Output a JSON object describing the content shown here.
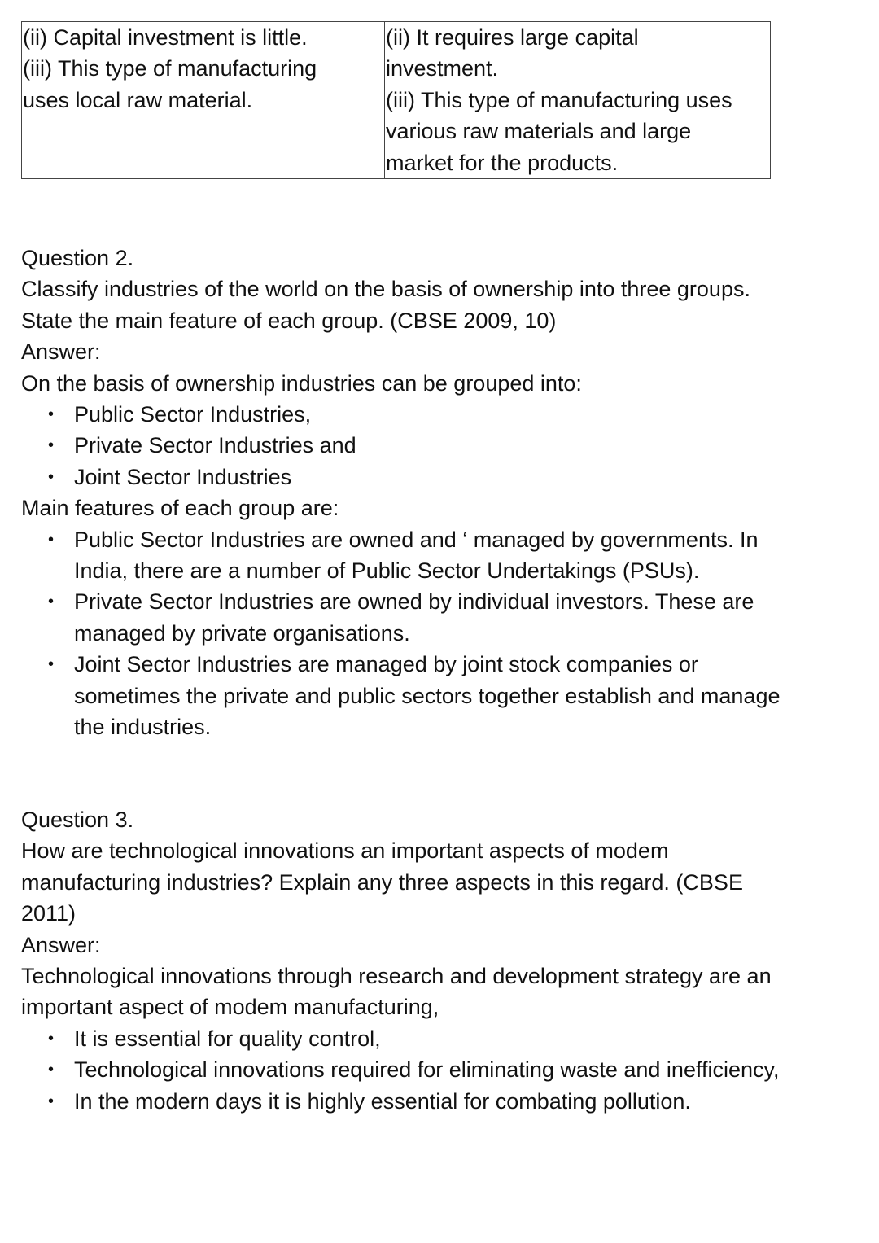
{
  "table": {
    "left_lines": [
      "(ii) Capital investment is little.",
      "(iii) This type of manufacturing",
      "uses local raw material."
    ],
    "right_lines": [
      "(ii) It requires large capital",
      "investment.",
      "(iii) This type of manufacturing uses",
      "various raw materials and large",
      "market for the products."
    ]
  },
  "question2": {
    "heading": "Question 2.",
    "text_lines": [
      "Classify industries of the world on the basis of ownership into three groups.",
      "State the main feature of each group. (CBSE 2009, 10)"
    ],
    "answer_label": "Answer:",
    "intro": "On the basis of ownership industries can be grouped into:",
    "groups": [
      "Public Sector Industries,",
      "Private Sector Industries and",
      "Joint Sector Industries"
    ],
    "features_intro": "Main features of each group are:",
    "features": [
      [
        "Public Sector Industries are owned and ‘ managed by governments. In",
        "India, there are a number of Public Sector Undertakings (PSUs)."
      ],
      [
        "Private Sector Industries are owned by individual investors. These are",
        "managed by private organisations."
      ],
      [
        "Joint Sector Industries are managed by joint stock companies or",
        "sometimes the private and public sectors together establish and manage",
        "the industries."
      ]
    ]
  },
  "question3": {
    "heading": "Question 3.",
    "text_lines": [
      "How are technological innovations an important aspects of modem",
      "manufacturing industries? Explain any three aspects in this regard. (CBSE",
      "2011)"
    ],
    "answer_label": "Answer:",
    "intro_lines": [
      "Technological innovations through research and development strategy are an",
      "important aspect of modem manufacturing,"
    ],
    "points": [
      "It is essential for quality control,",
      "Technological innovations required for eliminating waste and inefficiency,",
      "In the modern days it is highly essential for combating pollution."
    ]
  },
  "bullet_symbol": "•"
}
